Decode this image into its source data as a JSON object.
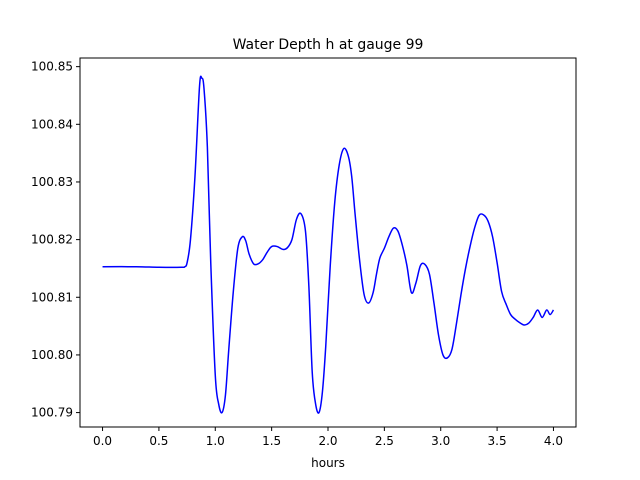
{
  "chart_data": {
    "type": "line",
    "title": "Water Depth h at gauge 99",
    "xlabel": "hours",
    "ylabel": "",
    "xlim": [
      -0.2,
      4.2
    ],
    "ylim": [
      100.7875,
      100.8515
    ],
    "xticks": [
      0.0,
      0.5,
      1.0,
      1.5,
      2.0,
      2.5,
      3.0,
      3.5,
      4.0
    ],
    "xtick_labels": [
      "0.0",
      "0.5",
      "1.0",
      "1.5",
      "2.0",
      "2.5",
      "3.0",
      "3.5",
      "4.0"
    ],
    "yticks": [
      100.79,
      100.8,
      100.81,
      100.82,
      100.83,
      100.84,
      100.85
    ],
    "ytick_labels": [
      "100.79",
      "100.80",
      "100.81",
      "100.82",
      "100.83",
      "100.84",
      "100.85"
    ],
    "grid": false,
    "series": [
      {
        "color": "#0000ff",
        "x": [
          0.0,
          0.3,
          0.5,
          0.7,
          0.73,
          0.75,
          0.78,
          0.82,
          0.86,
          0.88,
          0.9,
          0.93,
          0.96,
          1.0,
          1.03,
          1.06,
          1.09,
          1.12,
          1.16,
          1.2,
          1.24,
          1.27,
          1.3,
          1.34,
          1.38,
          1.42,
          1.46,
          1.5,
          1.55,
          1.6,
          1.64,
          1.68,
          1.72,
          1.76,
          1.8,
          1.83,
          1.86,
          1.89,
          1.92,
          1.95,
          1.98,
          2.02,
          2.06,
          2.1,
          2.14,
          2.18,
          2.21,
          2.24,
          2.28,
          2.32,
          2.36,
          2.4,
          2.43,
          2.46,
          2.5,
          2.54,
          2.58,
          2.62,
          2.66,
          2.7,
          2.74,
          2.78,
          2.82,
          2.86,
          2.9,
          2.94,
          2.98,
          3.02,
          3.06,
          3.1,
          3.14,
          3.18,
          3.22,
          3.26,
          3.3,
          3.34,
          3.38,
          3.42,
          3.46,
          3.5,
          3.54,
          3.58,
          3.62,
          3.66,
          3.7,
          3.74,
          3.78,
          3.82,
          3.86,
          3.9,
          3.94,
          3.97,
          4.0
        ],
        "y": [
          100.8153,
          100.8153,
          100.8152,
          100.8152,
          100.8153,
          100.816,
          100.82,
          100.831,
          100.8465,
          100.848,
          100.8462,
          100.836,
          100.816,
          100.7965,
          100.7915,
          100.79,
          100.793,
          100.801,
          100.811,
          100.8185,
          100.8205,
          100.8198,
          100.8175,
          100.8158,
          100.8158,
          100.8165,
          100.8178,
          100.8188,
          100.8188,
          100.8183,
          100.8186,
          100.82,
          100.8235,
          100.8245,
          100.8215,
          100.812,
          100.797,
          100.7915,
          100.79,
          100.7935,
          100.8015,
          100.8155,
          100.8265,
          100.833,
          100.8358,
          100.8345,
          100.831,
          100.8245,
          100.8165,
          100.8105,
          100.809,
          100.8108,
          100.814,
          100.8168,
          100.8185,
          100.8205,
          100.822,
          100.8215,
          100.819,
          100.8155,
          100.8108,
          100.8125,
          100.8155,
          100.8157,
          100.814,
          100.809,
          100.8035,
          100.8,
          100.7995,
          100.801,
          100.8055,
          100.8105,
          100.815,
          100.8188,
          100.822,
          100.8242,
          100.8243,
          100.8232,
          100.8205,
          100.816,
          100.811,
          100.8088,
          100.807,
          100.8062,
          100.8056,
          100.8052,
          100.8055,
          100.8065,
          100.8078,
          100.8065,
          100.8078,
          100.807,
          100.8078
        ]
      }
    ]
  }
}
